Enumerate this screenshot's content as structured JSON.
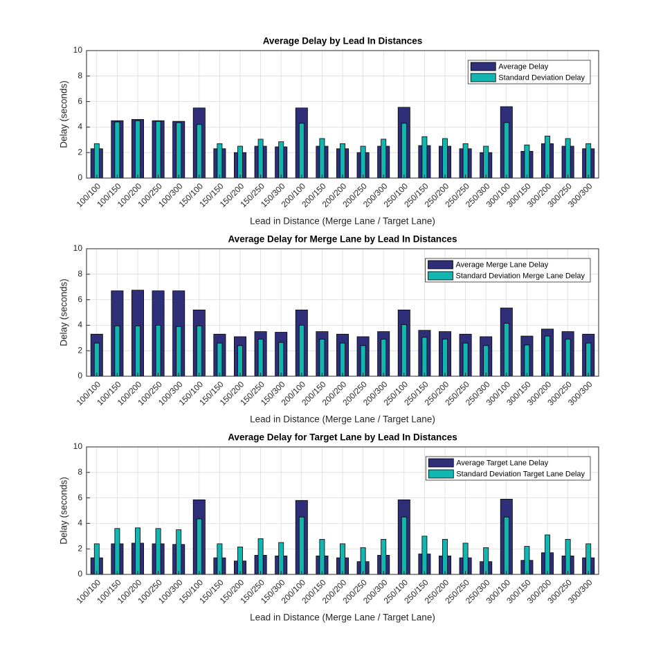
{
  "chart_data": [
    {
      "type": "bar",
      "title": "Average Delay by Lead In Distances",
      "x_label": "Lead in Distance (Merge Lane / Target Lane)",
      "y_label": "Delay (seconds)",
      "categories": [
        "100/100",
        "100/150",
        "100/200",
        "100/250",
        "100/300",
        "150/100",
        "150/150",
        "150/200",
        "150/250",
        "150/300",
        "200/100",
        "200/150",
        "200/200",
        "200/250",
        "200/300",
        "250/100",
        "250/150",
        "250/200",
        "250/250",
        "250/300",
        "300/100",
        "300/150",
        "300/200",
        "300/250",
        "300/300"
      ],
      "series": [
        {
          "name": "Average Delay",
          "color": "#2e2f78",
          "values": [
            2.3,
            4.5,
            4.6,
            4.5,
            4.45,
            5.5,
            2.3,
            2.0,
            2.5,
            2.45,
            5.5,
            2.5,
            2.3,
            2.0,
            2.5,
            5.55,
            2.55,
            2.5,
            2.3,
            2.0,
            5.6,
            2.1,
            2.7,
            2.5,
            2.3
          ]
        },
        {
          "name": "Standard Deviation Delay",
          "color": "#12b5b0",
          "values": [
            2.7,
            4.4,
            4.5,
            4.45,
            4.35,
            4.2,
            2.7,
            2.5,
            3.05,
            2.85,
            4.3,
            3.1,
            2.7,
            2.5,
            3.05,
            4.3,
            3.25,
            3.1,
            2.7,
            2.5,
            4.35,
            2.6,
            3.3,
            3.1,
            2.7
          ]
        }
      ],
      "ylim": [
        0,
        10
      ],
      "yticks": [
        0,
        2,
        4,
        6,
        8,
        10
      ],
      "grid": true,
      "legend": "northeast"
    },
    {
      "type": "bar",
      "title": "Average Delay for Merge Lane by Lead In Distances",
      "x_label": "Lead in Distance (Merge Lane / Target Lane)",
      "y_label": "Delay (seconds)",
      "categories": [
        "100/100",
        "100/150",
        "100/200",
        "100/250",
        "100/300",
        "150/100",
        "150/150",
        "150/200",
        "150/250",
        "150/300",
        "200/100",
        "200/150",
        "200/200",
        "200/250",
        "200/300",
        "250/100",
        "250/150",
        "250/200",
        "250/250",
        "250/300",
        "300/100",
        "300/150",
        "300/200",
        "300/250",
        "300/300"
      ],
      "series": [
        {
          "name": "Average Merge Lane Delay",
          "color": "#2e2f78",
          "values": [
            3.3,
            6.7,
            6.75,
            6.7,
            6.7,
            5.2,
            3.3,
            3.1,
            3.5,
            3.45,
            5.2,
            3.5,
            3.3,
            3.1,
            3.5,
            5.2,
            3.6,
            3.5,
            3.3,
            3.1,
            5.35,
            3.15,
            3.7,
            3.5,
            3.3
          ]
        },
        {
          "name": "Standard Deviation Merge Lane Delay",
          "color": "#12b5b0",
          "values": [
            2.6,
            3.95,
            3.95,
            4.0,
            3.9,
            3.95,
            2.6,
            2.4,
            2.9,
            2.65,
            4.0,
            2.9,
            2.6,
            2.4,
            2.9,
            4.05,
            3.05,
            2.9,
            2.6,
            2.4,
            4.15,
            2.45,
            3.15,
            2.9,
            2.6
          ]
        }
      ],
      "ylim": [
        0,
        10
      ],
      "yticks": [
        0,
        2,
        4,
        6,
        8,
        10
      ],
      "grid": true,
      "legend": "northeast"
    },
    {
      "type": "bar",
      "title": "Average Delay for Target Lane by Lead In Distances",
      "x_label": "Lead in Distance (Merge Lane / Target Lane)",
      "y_label": "Delay (seconds)",
      "categories": [
        "100/100",
        "100/150",
        "100/200",
        "100/250",
        "100/300",
        "150/100",
        "150/150",
        "150/200",
        "150/250",
        "150/300",
        "200/100",
        "200/150",
        "200/200",
        "200/250",
        "200/300",
        "250/100",
        "250/150",
        "250/200",
        "250/250",
        "250/300",
        "300/100",
        "300/150",
        "300/200",
        "300/250",
        "300/300"
      ],
      "series": [
        {
          "name": "Average Target Lane Delay",
          "color": "#2e2f78",
          "values": [
            1.3,
            2.4,
            2.45,
            2.4,
            2.35,
            5.85,
            1.3,
            1.05,
            1.5,
            1.45,
            5.8,
            1.45,
            1.3,
            1.0,
            1.5,
            5.85,
            1.6,
            1.45,
            1.3,
            1.0,
            5.9,
            1.1,
            1.7,
            1.45,
            1.3
          ]
        },
        {
          "name": "Standard Deviation Target Lane Delay",
          "color": "#12b5b0",
          "values": [
            2.4,
            3.6,
            3.65,
            3.6,
            3.5,
            4.35,
            2.4,
            2.15,
            2.8,
            2.5,
            4.5,
            2.75,
            2.4,
            2.1,
            2.75,
            4.5,
            3.0,
            2.75,
            2.45,
            2.1,
            4.5,
            2.2,
            3.1,
            2.75,
            2.4
          ]
        }
      ],
      "ylim": [
        0,
        10
      ],
      "yticks": [
        0,
        2,
        4,
        6,
        8,
        10
      ],
      "grid": true,
      "legend": "northeast"
    }
  ]
}
